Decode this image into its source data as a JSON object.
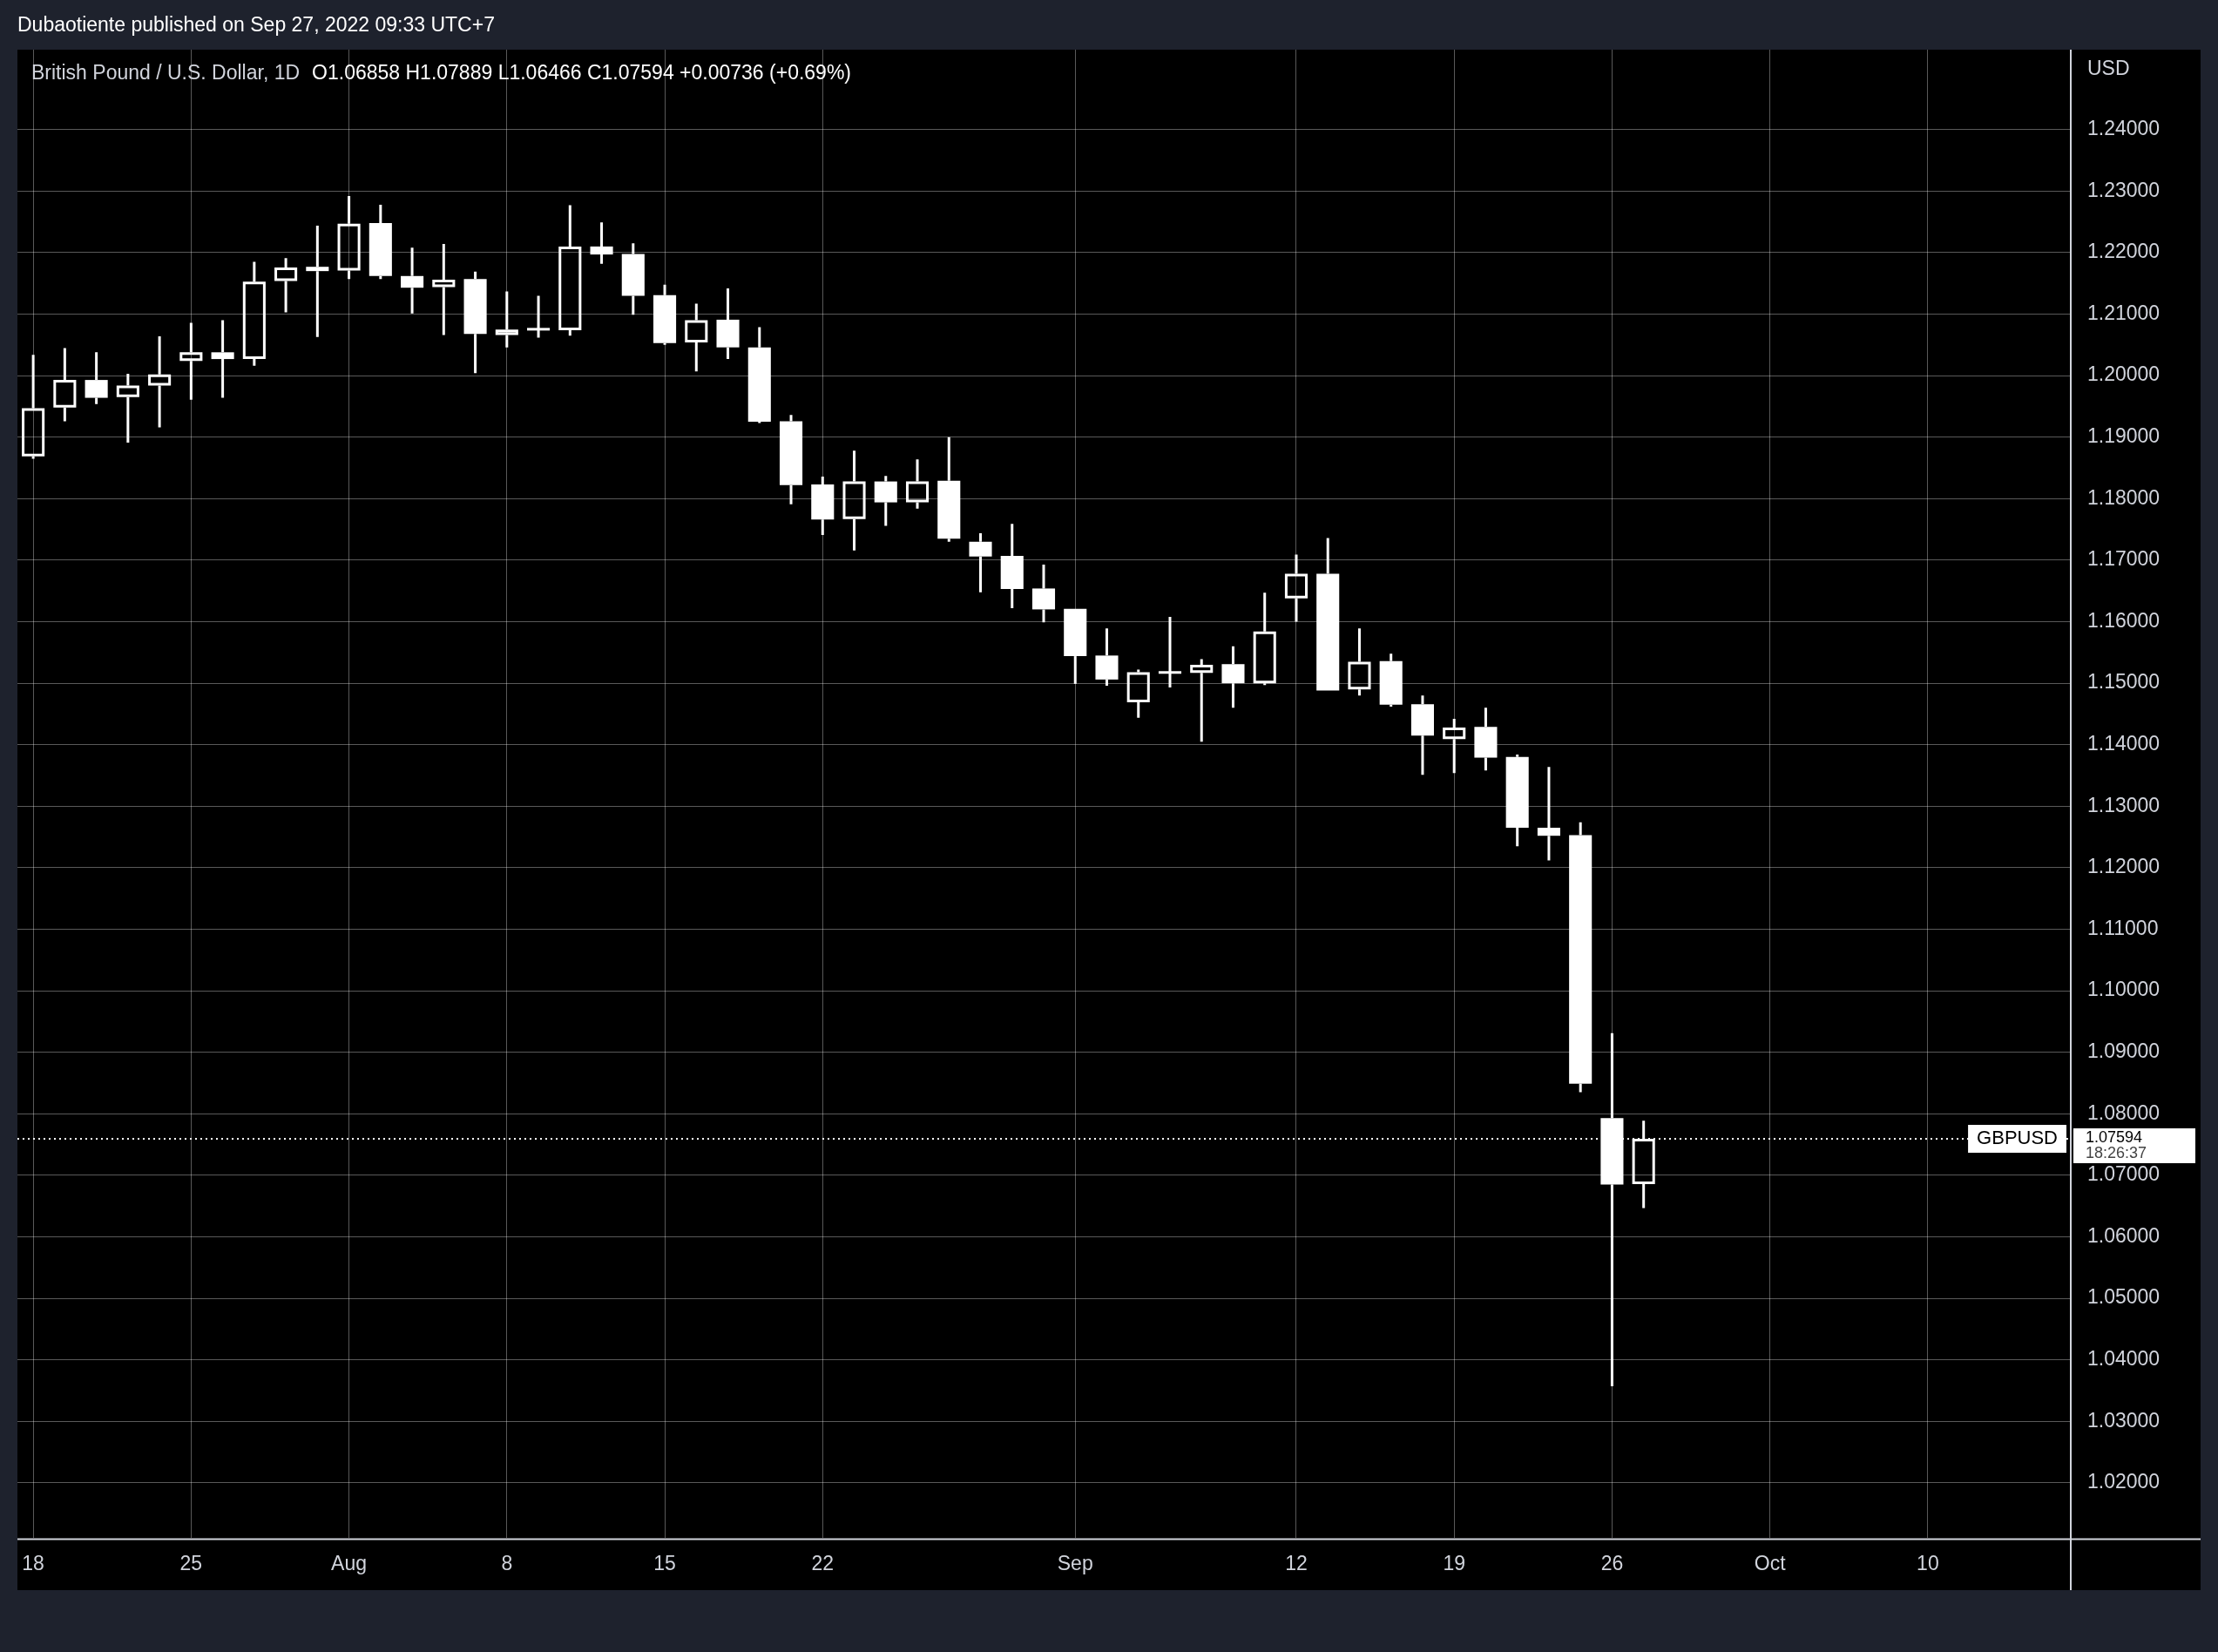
{
  "chart_data": {
    "type": "candlestick",
    "title": "British Pound / U.S. Dollar, 1D",
    "subtitle": "O1.06858 H1.07889 L1.06466 C1.07594 +0.00736 (+0.69%)",
    "ylabel": "USD",
    "annotations": [
      "Dubaotiente published on Sep 27, 2022 09:33 UTC+7",
      "1.07594",
      "18:26:37"
    ],
    "categories": [
      "18",
      null,
      null,
      null,
      null,
      "25",
      null,
      null,
      null,
      null,
      "Aug",
      null,
      null,
      null,
      null,
      "8",
      null,
      null,
      null,
      null,
      "15",
      null,
      null,
      null,
      null,
      "22",
      null,
      null,
      null,
      null,
      null,
      null,
      null,
      "Sep",
      null,
      null,
      null,
      null,
      null,
      null,
      "12",
      null,
      null,
      null,
      null,
      "19",
      null,
      null,
      null,
      null,
      "26",
      null,
      null,
      null,
      null,
      "Oct",
      null,
      null,
      null,
      null,
      "10",
      null,
      null,
      null,
      null
    ],
    "ohlc": [
      [
        1.1869,
        1.2034,
        1.1865,
        1.1947
      ],
      [
        1.1948,
        1.2045,
        1.1926,
        1.1993
      ],
      [
        1.1993,
        1.2038,
        1.1954,
        1.1964
      ],
      [
        1.1965,
        1.2003,
        1.1891,
        1.1984
      ],
      [
        1.1984,
        1.2064,
        1.1916,
        1.2002
      ],
      [
        1.2024,
        1.2086,
        1.1961,
        1.2038
      ],
      [
        1.2038,
        1.209,
        1.1964,
        1.2027
      ],
      [
        1.2027,
        1.2185,
        1.2016,
        1.2153
      ],
      [
        1.2154,
        1.2191,
        1.2103,
        1.2176
      ],
      [
        1.2177,
        1.2244,
        1.2063,
        1.217
      ],
      [
        1.2171,
        1.2292,
        1.2157,
        1.2247
      ],
      [
        1.2248,
        1.2278,
        1.2157,
        1.2162
      ],
      [
        1.2162,
        1.2208,
        1.2101,
        1.2143
      ],
      [
        1.2144,
        1.2214,
        1.2066,
        1.2156
      ],
      [
        1.2157,
        1.2169,
        1.2004,
        1.2068
      ],
      [
        1.2066,
        1.2137,
        1.2046,
        1.2075
      ],
      [
        1.2076,
        1.213,
        1.2062,
        1.2075
      ],
      [
        1.2074,
        1.2277,
        1.2065,
        1.221
      ],
      [
        1.221,
        1.2249,
        1.2182,
        1.2197
      ],
      [
        1.2198,
        1.2215,
        1.2099,
        1.213
      ],
      [
        1.2131,
        1.2148,
        1.205,
        1.2053
      ],
      [
        1.2054,
        1.2117,
        1.2007,
        1.209
      ],
      [
        1.2091,
        1.2142,
        1.2027,
        1.2046
      ],
      [
        1.2046,
        1.2079,
        1.1923,
        1.1925
      ],
      [
        1.1926,
        1.1936,
        1.1791,
        1.1822
      ],
      [
        1.1823,
        1.1836,
        1.1741,
        1.1766
      ],
      [
        1.1767,
        1.1878,
        1.1716,
        1.1828
      ],
      [
        1.1828,
        1.1837,
        1.1756,
        1.1794
      ],
      [
        1.1794,
        1.1864,
        1.1784,
        1.1828
      ],
      [
        1.1829,
        1.19,
        1.173,
        1.1735
      ],
      [
        1.173,
        1.1744,
        1.1648,
        1.1706
      ],
      [
        1.1707,
        1.1759,
        1.1622,
        1.1653
      ],
      [
        1.1654,
        1.1693,
        1.1599,
        1.162
      ],
      [
        1.1621,
        1.1621,
        1.1499,
        1.1544
      ],
      [
        1.1545,
        1.1589,
        1.1496,
        1.1506
      ],
      [
        1.1469,
        1.1522,
        1.1444,
        1.1518
      ],
      [
        1.1518,
        1.1608,
        1.1493,
        1.1517
      ],
      [
        1.1517,
        1.1539,
        1.1405,
        1.153
      ],
      [
        1.1531,
        1.156,
        1.146,
        1.15
      ],
      [
        1.15,
        1.1647,
        1.1497,
        1.1584
      ],
      [
        1.1638,
        1.1709,
        1.16,
        1.1678
      ],
      [
        1.1678,
        1.1736,
        1.1488,
        1.1488
      ],
      [
        1.149,
        1.1589,
        1.148,
        1.1535
      ],
      [
        1.1536,
        1.1548,
        1.1462,
        1.1465
      ],
      [
        1.1466,
        1.148,
        1.1351,
        1.1415
      ],
      [
        1.1409,
        1.1442,
        1.1354,
        1.1428
      ],
      [
        1.1429,
        1.146,
        1.1358,
        1.1379
      ],
      [
        1.138,
        1.1384,
        1.1235,
        1.1265
      ],
      [
        1.1265,
        1.1364,
        1.1212,
        1.1252
      ],
      [
        1.1253,
        1.1274,
        1.0835,
        1.0849
      ],
      [
        1.0793,
        1.0931,
        1.0357,
        1.0685
      ],
      [
        1.06858,
        1.07889,
        1.06466,
        1.07594
      ],
      null,
      null,
      null,
      null,
      null,
      null,
      null,
      null,
      null,
      null,
      null,
      null,
      null
    ],
    "color": "#ffffff",
    "ylim": [
      1.011,
      1.253
    ],
    "yticks": [
      {
        "value": 1.02,
        "label": "1.02000"
      },
      {
        "value": 1.03,
        "label": "1.03000"
      },
      {
        "value": 1.04,
        "label": "1.04000"
      },
      {
        "value": 1.05,
        "label": "1.05000"
      },
      {
        "value": 1.06,
        "label": "1.06000"
      },
      {
        "value": 1.07,
        "label": "1.07000"
      },
      {
        "value": 1.08,
        "label": "1.08000"
      },
      {
        "value": 1.09,
        "label": "1.09000"
      },
      {
        "value": 1.1,
        "label": "1.10000"
      },
      {
        "value": 1.11,
        "label": "1.11000"
      },
      {
        "value": 1.12,
        "label": "1.12000"
      },
      {
        "value": 1.13,
        "label": "1.13000"
      },
      {
        "value": 1.14,
        "label": "1.14000"
      },
      {
        "value": 1.15,
        "label": "1.15000"
      },
      {
        "value": 1.16,
        "label": "1.16000"
      },
      {
        "value": 1.17,
        "label": "1.17000"
      },
      {
        "value": 1.18,
        "label": "1.18000"
      },
      {
        "value": 1.19,
        "label": "1.19000"
      },
      {
        "value": 1.2,
        "label": "1.20000"
      },
      {
        "value": 1.21,
        "label": "1.21000"
      },
      {
        "value": 1.22,
        "label": "1.22000"
      },
      {
        "value": 1.23,
        "label": "1.23000"
      },
      {
        "value": 1.24,
        "label": "1.24000"
      }
    ],
    "ref_lines": [
      {
        "axis": "y",
        "value": 1.07594,
        "label": "GBPUSD",
        "line_style": "dotted",
        "color": "#ffffff"
      }
    ],
    "grid": true
  }
}
